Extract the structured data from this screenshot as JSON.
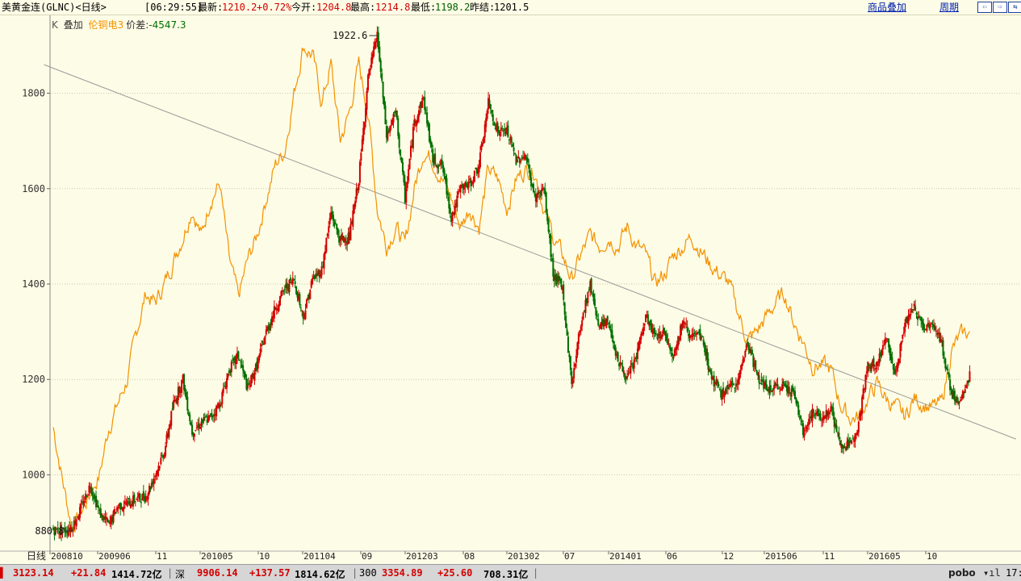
{
  "header": {
    "symbol": "美黄金连(GLNC)<日线>",
    "time": "[06:29:55]",
    "latest_label": "最新:",
    "latest_value": "1210.2",
    "change_pct": "+0.72%",
    "open_label": "今开:",
    "open_value": "1204.8",
    "high_label": "最高:",
    "high_value": "1214.8",
    "low_label": "最低:",
    "low_value": "1198.2",
    "prev_label": "昨结:",
    "prev_value": "1201.5",
    "overlay_link": "商品叠加",
    "period_link": "周期",
    "nav_buttons": [
      "⇦",
      "⇨",
      "⇆"
    ]
  },
  "legend": {
    "k_label": "K",
    "overlay_label": "叠加",
    "overlay_series": "伦铜电3",
    "spread_label": "价差:",
    "spread_value": "-4547.3"
  },
  "colors": {
    "background": "#fdfce6",
    "gold_up": "#d40000",
    "gold_down": "#007000",
    "copper_overlay": "#f39200",
    "trendline": "#9a9a9a",
    "grid": "#c8c8a8"
  },
  "chart_data": {
    "type": "line",
    "ylim": [
      840,
      1960
    ],
    "y_ticks": [
      1000,
      1200,
      1400,
      1600,
      1800
    ],
    "x_tick_labels": [
      "日线",
      "200810",
      "200906",
      "11",
      "201005",
      "10",
      "201104",
      "09",
      "201203",
      "08",
      "201302",
      "07",
      "201401",
      "06",
      "12",
      "201506",
      "11",
      "201605",
      "10"
    ],
    "x_start": "2008-10",
    "x_end": "2016-12",
    "annotations": [
      {
        "text": "1922.6",
        "date": "2011-09",
        "value": 1922.6,
        "kind": "high"
      },
      {
        "text": "880.8",
        "date": "2008-11",
        "value": 880.8,
        "kind": "low"
      }
    ],
    "trendline": [
      {
        "x": "2008-09",
        "y": 1860
      },
      {
        "x": "2017-06",
        "y": 1075
      }
    ],
    "series": [
      {
        "name": "美黄金连(GLNC)",
        "style": "candles-red-green",
        "points": [
          [
            "2008-10",
            885
          ],
          [
            "2008-11",
            882
          ],
          [
            "2008-12",
            890
          ],
          [
            "2009-01",
            930
          ],
          [
            "2009-02",
            980
          ],
          [
            "2009-03",
            920
          ],
          [
            "2009-04",
            895
          ],
          [
            "2009-05",
            935
          ],
          [
            "2009-06",
            940
          ],
          [
            "2009-07",
            950
          ],
          [
            "2009-08",
            955
          ],
          [
            "2009-09",
            1000
          ],
          [
            "2009-10",
            1050
          ],
          [
            "2009-11",
            1150
          ],
          [
            "2009-12",
            1200
          ],
          [
            "2010-01",
            1090
          ],
          [
            "2010-02",
            1110
          ],
          [
            "2010-03",
            1120
          ],
          [
            "2010-04",
            1150
          ],
          [
            "2010-05",
            1220
          ],
          [
            "2010-06",
            1250
          ],
          [
            "2010-07",
            1180
          ],
          [
            "2010-08",
            1230
          ],
          [
            "2010-09",
            1300
          ],
          [
            "2010-10",
            1350
          ],
          [
            "2010-11",
            1390
          ],
          [
            "2010-12",
            1410
          ],
          [
            "2011-01",
            1330
          ],
          [
            "2011-02",
            1410
          ],
          [
            "2011-03",
            1430
          ],
          [
            "2011-04",
            1550
          ],
          [
            "2011-05",
            1490
          ],
          [
            "2011-06",
            1500
          ],
          [
            "2011-07",
            1620
          ],
          [
            "2011-08",
            1830
          ],
          [
            "2011-09",
            1922.6
          ],
          [
            "2011-10",
            1710
          ],
          [
            "2011-11",
            1760
          ],
          [
            "2011-12",
            1580
          ],
          [
            "2012-01",
            1740
          ],
          [
            "2012-02",
            1790
          ],
          [
            "2012-03",
            1660
          ],
          [
            "2012-04",
            1650
          ],
          [
            "2012-05",
            1540
          ],
          [
            "2012-06",
            1600
          ],
          [
            "2012-07",
            1610
          ],
          [
            "2012-08",
            1650
          ],
          [
            "2012-09",
            1780
          ],
          [
            "2012-10",
            1720
          ],
          [
            "2012-11",
            1720
          ],
          [
            "2012-12",
            1660
          ],
          [
            "2013-01",
            1670
          ],
          [
            "2013-02",
            1580
          ],
          [
            "2013-03",
            1600
          ],
          [
            "2013-04",
            1420
          ],
          [
            "2013-05",
            1390
          ],
          [
            "2013-06",
            1190
          ],
          [
            "2013-07",
            1320
          ],
          [
            "2013-08",
            1400
          ],
          [
            "2013-09",
            1310
          ],
          [
            "2013-10",
            1320
          ],
          [
            "2013-11",
            1240
          ],
          [
            "2013-12",
            1200
          ],
          [
            "2014-01",
            1250
          ],
          [
            "2014-02",
            1330
          ],
          [
            "2014-03",
            1290
          ],
          [
            "2014-04",
            1300
          ],
          [
            "2014-05",
            1250
          ],
          [
            "2014-06",
            1320
          ],
          [
            "2014-07",
            1290
          ],
          [
            "2014-08",
            1290
          ],
          [
            "2014-09",
            1210
          ],
          [
            "2014-10",
            1170
          ],
          [
            "2014-11",
            1180
          ],
          [
            "2014-12",
            1200
          ],
          [
            "2015-01",
            1280
          ],
          [
            "2015-02",
            1210
          ],
          [
            "2015-03",
            1180
          ],
          [
            "2015-04",
            1180
          ],
          [
            "2015-05",
            1190
          ],
          [
            "2015-06",
            1170
          ],
          [
            "2015-07",
            1090
          ],
          [
            "2015-08",
            1130
          ],
          [
            "2015-09",
            1120
          ],
          [
            "2015-10",
            1140
          ],
          [
            "2015-11",
            1060
          ],
          [
            "2015-12",
            1060
          ],
          [
            "2016-01",
            1110
          ],
          [
            "2016-02",
            1230
          ],
          [
            "2016-03",
            1230
          ],
          [
            "2016-04",
            1290
          ],
          [
            "2016-05",
            1210
          ],
          [
            "2016-06",
            1320
          ],
          [
            "2016-07",
            1350
          ],
          [
            "2016-08",
            1310
          ],
          [
            "2016-09",
            1320
          ],
          [
            "2016-10",
            1270
          ],
          [
            "2016-11",
            1170
          ],
          [
            "2016-12",
            1150
          ],
          [
            "2017-01",
            1210
          ]
        ]
      },
      {
        "name": "伦铜电3",
        "style": "line",
        "points": [
          [
            "2008-10",
            1100
          ],
          [
            "2008-11",
            990
          ],
          [
            "2008-12",
            890
          ],
          [
            "2009-01",
            920
          ],
          [
            "2009-02",
            960
          ],
          [
            "2009-03",
            1000
          ],
          [
            "2009-04",
            1100
          ],
          [
            "2009-05",
            1150
          ],
          [
            "2009-06",
            1200
          ],
          [
            "2009-07",
            1300
          ],
          [
            "2009-08",
            1380
          ],
          [
            "2009-09",
            1360
          ],
          [
            "2009-10",
            1400
          ],
          [
            "2009-11",
            1450
          ],
          [
            "2009-12",
            1500
          ],
          [
            "2010-01",
            1560
          ],
          [
            "2010-02",
            1500
          ],
          [
            "2010-03",
            1580
          ],
          [
            "2010-04",
            1610
          ],
          [
            "2010-05",
            1450
          ],
          [
            "2010-06",
            1370
          ],
          [
            "2010-07",
            1450
          ],
          [
            "2010-08",
            1500
          ],
          [
            "2010-09",
            1580
          ],
          [
            "2010-10",
            1650
          ],
          [
            "2010-11",
            1680
          ],
          [
            "2010-12",
            1800
          ],
          [
            "2011-01",
            1900
          ],
          [
            "2011-02",
            1880
          ],
          [
            "2011-03",
            1780
          ],
          [
            "2011-04",
            1860
          ],
          [
            "2011-05",
            1700
          ],
          [
            "2011-06",
            1760
          ],
          [
            "2011-07",
            1860
          ],
          [
            "2011-08",
            1760
          ],
          [
            "2011-09",
            1560
          ],
          [
            "2011-10",
            1480
          ],
          [
            "2011-11",
            1520
          ],
          [
            "2011-12",
            1480
          ],
          [
            "2012-01",
            1600
          ],
          [
            "2012-02",
            1680
          ],
          [
            "2012-03",
            1660
          ],
          [
            "2012-04",
            1620
          ],
          [
            "2012-05",
            1580
          ],
          [
            "2012-06",
            1520
          ],
          [
            "2012-07",
            1560
          ],
          [
            "2012-08",
            1520
          ],
          [
            "2012-09",
            1640
          ],
          [
            "2012-10",
            1620
          ],
          [
            "2012-11",
            1560
          ],
          [
            "2012-12",
            1620
          ],
          [
            "2013-01",
            1640
          ],
          [
            "2013-02",
            1640
          ],
          [
            "2013-03",
            1560
          ],
          [
            "2013-04",
            1500
          ],
          [
            "2013-05",
            1460
          ],
          [
            "2013-06",
            1410
          ],
          [
            "2013-07",
            1460
          ],
          [
            "2013-08",
            1500
          ],
          [
            "2013-09",
            1480
          ],
          [
            "2013-10",
            1500
          ],
          [
            "2013-11",
            1480
          ],
          [
            "2013-12",
            1520
          ],
          [
            "2014-01",
            1480
          ],
          [
            "2014-02",
            1460
          ],
          [
            "2014-03",
            1400
          ],
          [
            "2014-04",
            1420
          ],
          [
            "2014-05",
            1460
          ],
          [
            "2014-06",
            1480
          ],
          [
            "2014-07",
            1500
          ],
          [
            "2014-08",
            1470
          ],
          [
            "2014-09",
            1440
          ],
          [
            "2014-10",
            1420
          ],
          [
            "2014-11",
            1400
          ],
          [
            "2014-12",
            1340
          ],
          [
            "2015-01",
            1280
          ],
          [
            "2015-02",
            1300
          ],
          [
            "2015-03",
            1330
          ],
          [
            "2015-04",
            1360
          ],
          [
            "2015-05",
            1380
          ],
          [
            "2015-06",
            1320
          ],
          [
            "2015-07",
            1280
          ],
          [
            "2015-08",
            1230
          ],
          [
            "2015-09",
            1230
          ],
          [
            "2015-10",
            1220
          ],
          [
            "2015-11",
            1150
          ],
          [
            "2015-12",
            1120
          ],
          [
            "2016-01",
            1120
          ],
          [
            "2016-02",
            1160
          ],
          [
            "2016-03",
            1190
          ],
          [
            "2016-04",
            1160
          ],
          [
            "2016-05",
            1140
          ],
          [
            "2016-06",
            1120
          ],
          [
            "2016-07",
            1160
          ],
          [
            "2016-08",
            1150
          ],
          [
            "2016-09",
            1140
          ],
          [
            "2016-10",
            1150
          ],
          [
            "2016-11",
            1260
          ],
          [
            "2016-12",
            1290
          ],
          [
            "2017-01",
            1300
          ]
        ]
      }
    ]
  },
  "statusbar": {
    "sh_value": "3123.14",
    "sh_change": "+21.84",
    "sh_turnover": "1414.72亿",
    "sz_label": "深",
    "sz_value": "9906.14",
    "sz_change": "+137.57",
    "sz_turnover": "1814.62亿",
    "csi_label": "300",
    "csi_value": "3354.89",
    "csi_change": "+25.60",
    "csi_turnover": "708.31亿",
    "brand": "pobo",
    "clock": "17:"
  }
}
